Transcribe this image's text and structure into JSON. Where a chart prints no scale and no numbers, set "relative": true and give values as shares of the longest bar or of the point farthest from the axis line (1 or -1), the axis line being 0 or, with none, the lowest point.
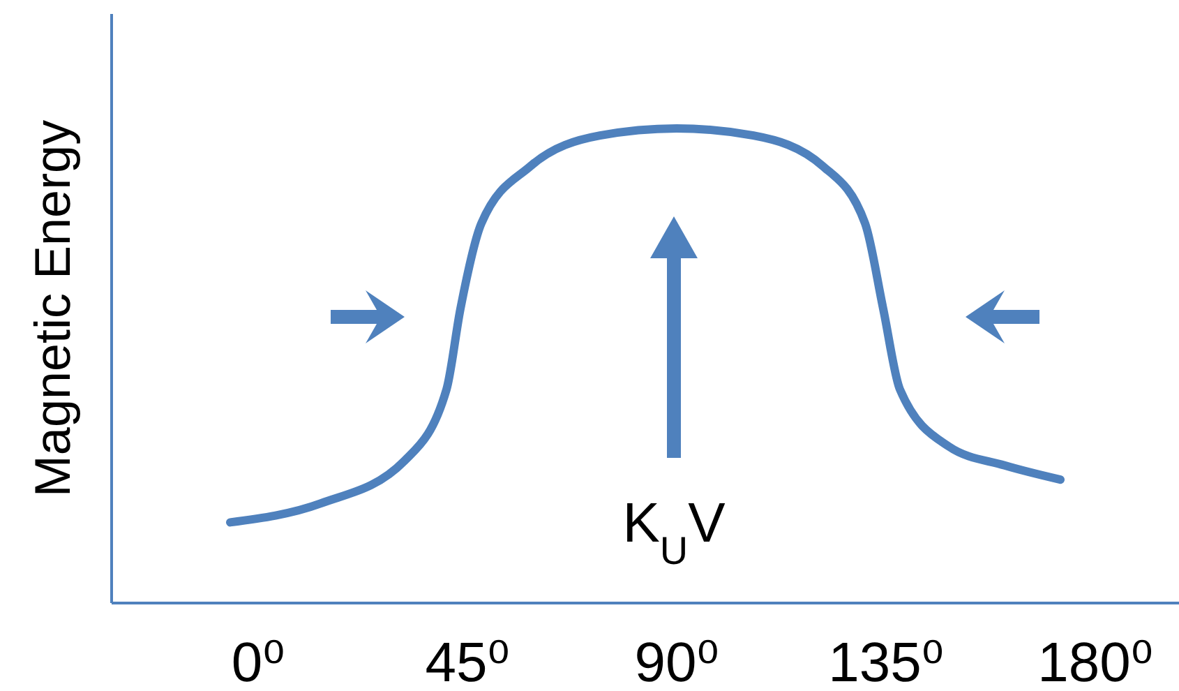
{
  "chart_data": {
    "type": "line",
    "relative": true,
    "ylabel": "Magnetic Energy",
    "xlim": [
      -31.5,
      198
    ],
    "xticks": [
      {
        "value": 0,
        "label": "0⁰"
      },
      {
        "value": 45,
        "label": "45⁰"
      },
      {
        "value": 90,
        "label": "90⁰"
      },
      {
        "value": 135,
        "label": "135⁰"
      },
      {
        "value": 180,
        "label": "180⁰"
      }
    ],
    "x": [
      -6,
      13.5,
      31.5,
      40.5,
      43.5,
      48,
      58.5,
      73.5,
      90,
      106.5,
      121.5,
      130.5,
      134.4,
      138,
      148.5,
      160.5,
      172.5
    ],
    "series": [
      {
        "color": "#4f81bd",
        "values": [
          0.17,
          0.21,
          0.3,
          0.45,
          0.62,
          0.8,
          0.92,
          0.985,
          1,
          0.985,
          0.92,
          0.8,
          0.62,
          0.45,
          0.33,
          0.29,
          0.26
        ]
      }
    ],
    "annotations": [
      "K$_{U}$V"
    ],
    "grid": false,
    "marker": "none",
    "line_style": "solid"
  }
}
